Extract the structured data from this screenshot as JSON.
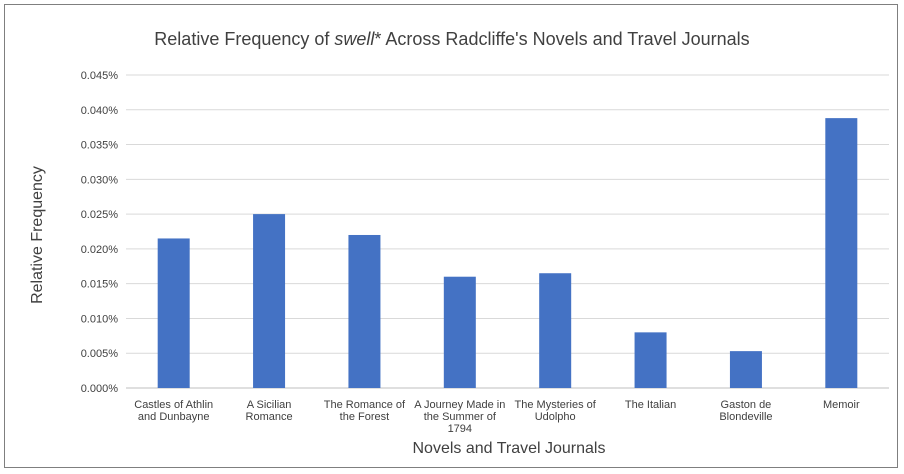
{
  "chart_data": {
    "type": "bar",
    "title_prefix": "Relative Frequency of ",
    "title_italic": "swell",
    "title_suffix": "* Across Radcliffe's Novels and Travel Journals",
    "xlabel": "Novels and Travel Journals",
    "ylabel": "Relative Frequency",
    "ylim": [
      0,
      0.045
    ],
    "yticks": [
      0,
      0.005,
      0.01,
      0.015,
      0.02,
      0.025,
      0.03,
      0.035,
      0.04,
      0.045
    ],
    "ytick_labels": [
      "0.000%",
      "0.005%",
      "0.010%",
      "0.015%",
      "0.020%",
      "0.025%",
      "0.030%",
      "0.035%",
      "0.040%",
      "0.045%"
    ],
    "categories": [
      [
        "Castles of Athlin",
        "and Dunbayne"
      ],
      [
        "A Sicilian",
        "Romance"
      ],
      [
        "The Romance of",
        "the Forest"
      ],
      [
        "A Journey Made in",
        "the Summer of",
        "1794"
      ],
      [
        "The Mysteries of",
        "Udolpho"
      ],
      [
        "The Italian"
      ],
      [
        "Gaston de",
        "Blondeville"
      ],
      [
        "Memoir"
      ]
    ],
    "values": [
      0.0215,
      0.025,
      0.022,
      0.016,
      0.0165,
      0.008,
      0.0053,
      0.0388
    ],
    "bar_color": "#4472c4",
    "grid": true,
    "legend": "none"
  }
}
